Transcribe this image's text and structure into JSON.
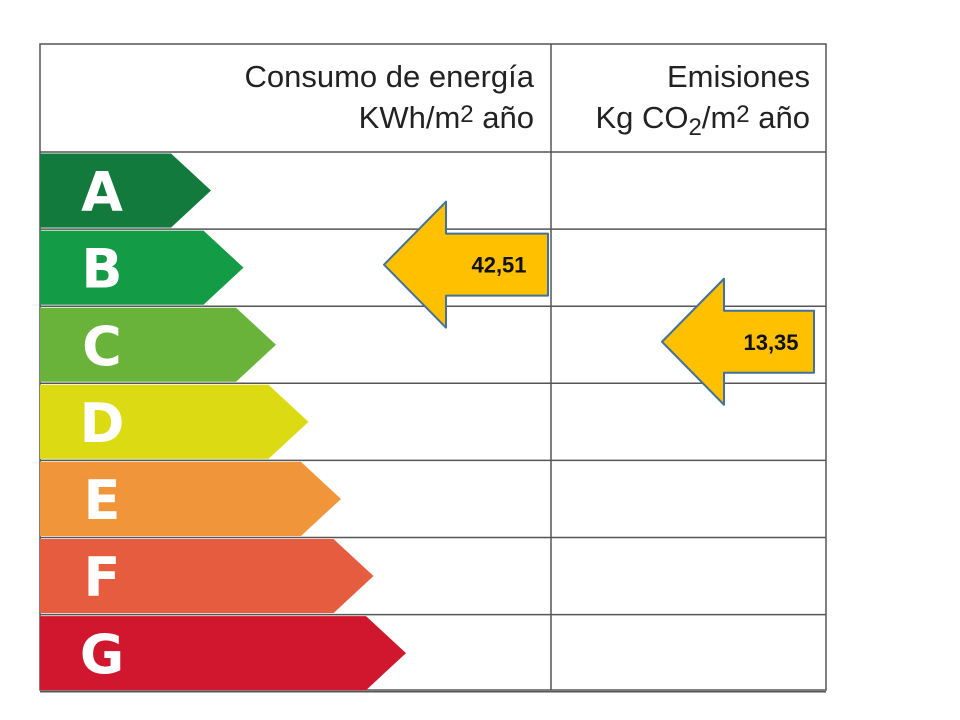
{
  "header": {
    "energy_line1": "Consumo de energía",
    "energy_unit_pre": "KWh/m",
    "energy_unit_sup": "2",
    "energy_unit_post": " año",
    "emissions_line1": "Emisiones",
    "emissions_unit_pre": "Kg CO",
    "emissions_unit_sub": "2",
    "emissions_unit_mid": "/m",
    "emissions_unit_sup": "2",
    "emissions_unit_post": " año"
  },
  "classes": [
    {
      "letter": "A",
      "color": "#127a3c"
    },
    {
      "letter": "B",
      "color": "#149b45"
    },
    {
      "letter": "C",
      "color": "#69b33a"
    },
    {
      "letter": "D",
      "color": "#dcdb13"
    },
    {
      "letter": "E",
      "color": "#f1953a"
    },
    {
      "letter": "F",
      "color": "#e65c3e"
    },
    {
      "letter": "G",
      "color": "#d0172d"
    }
  ],
  "indicators": {
    "energy": {
      "value": "42,51",
      "rating": "B",
      "color": "#ffc000",
      "stroke": "#41719c"
    },
    "emissions": {
      "value": "13,35",
      "rating": "C",
      "color": "#ffc000",
      "stroke": "#41719c"
    }
  }
}
